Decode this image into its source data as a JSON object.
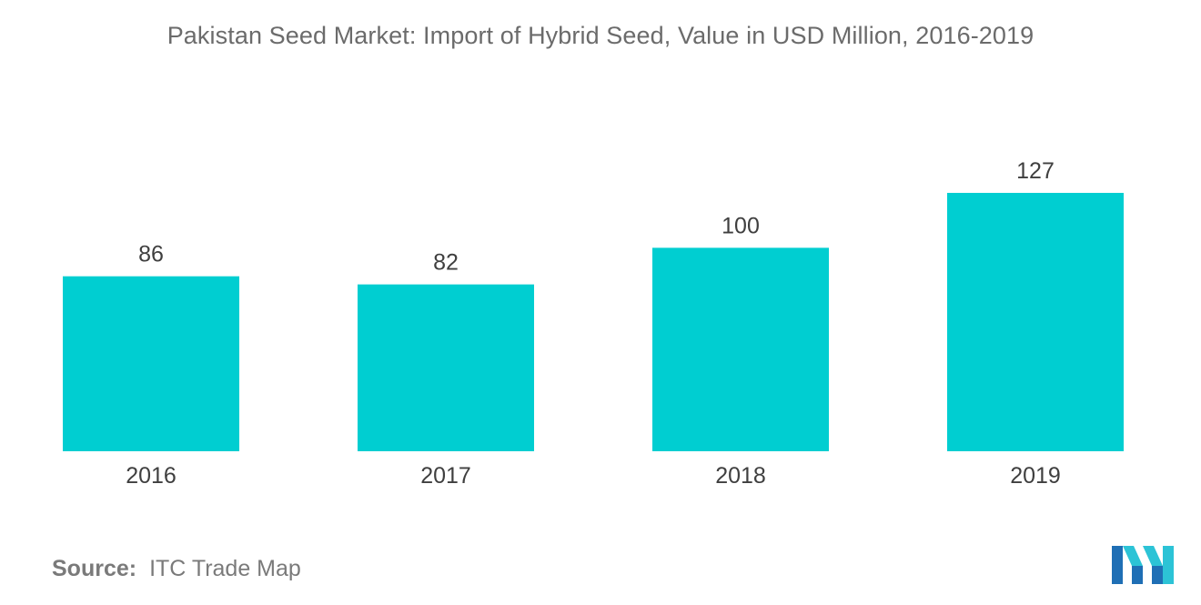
{
  "title": "Pakistan Seed Market: Import of Hybrid Seed, Value in USD Million, 2016-2019",
  "source": {
    "label": "Source:",
    "value": "ITC Trade Map"
  },
  "logo": {
    "icon": "mordor-intelligence-logo-icon",
    "colors": [
      "#1f6fb5",
      "#2cc3d6"
    ]
  },
  "colors": {
    "bar": "#00ced1",
    "text": "#3f3f3f",
    "title": "#6b6b6b"
  },
  "chart_data": {
    "type": "bar",
    "title": "Pakistan Seed Market: Import of Hybrid Seed, Value in USD Million, 2016-2019",
    "categories": [
      "2016",
      "2017",
      "2018",
      "2019"
    ],
    "values": [
      86,
      82,
      100,
      127
    ],
    "data_labels": [
      "86",
      "82",
      "100",
      "127"
    ],
    "xlabel": "",
    "ylabel": "",
    "ylim": [
      0,
      127
    ],
    "grid": false,
    "legend": "none"
  }
}
